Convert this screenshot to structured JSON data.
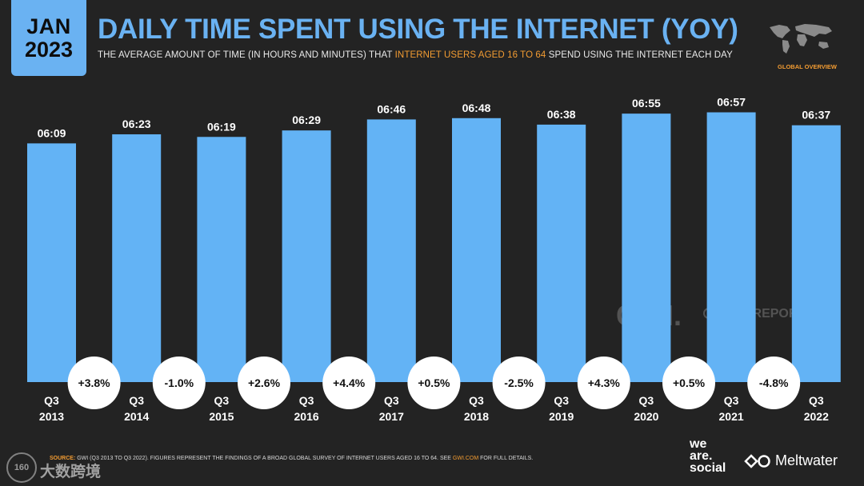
{
  "header": {
    "month": "JAN",
    "year": "2023",
    "title": "DAILY TIME SPENT USING THE INTERNET (YOY)",
    "subtitle_pre": "THE AVERAGE AMOUNT OF TIME (IN HOURS AND MINUTES) THAT ",
    "subtitle_highlight": "INTERNET USERS AGED 16 TO 64",
    "subtitle_post": " SPEND USING THE INTERNET EACH DAY",
    "section_label": "GLOBAL OVERVIEW"
  },
  "footer": {
    "source_key": "SOURCE:",
    "source_text": " GWI (Q3 2013 TO Q3 2022). FIGURES REPRESENT THE FINDINGS OF A BROAD GLOBAL SURVEY OF INTERNET USERS AGED 16 TO 64. SEE ",
    "source_link": "GWI.COM",
    "source_tail": " FOR FULL DETAILS.",
    "brand_we": [
      "we",
      "are.",
      "social"
    ],
    "brand_meltwater": "Meltwater",
    "watermark_gwi": "GWI.",
    "watermark_datareportal": "DATAREPORTAL",
    "watermark_cn": "大数跨境",
    "watermark_logo": "160"
  },
  "colors": {
    "bar": "#63b3f5",
    "accent": "#6ab2f2",
    "highlight": "#f39c32",
    "background": "#232323"
  },
  "chart_data": {
    "type": "bar",
    "categories": [
      "Q3 2013",
      "Q3 2014",
      "Q3 2015",
      "Q3 2016",
      "Q3 2017",
      "Q3 2018",
      "Q3 2019",
      "Q3 2020",
      "Q3 2021",
      "Q3 2022"
    ],
    "quarters": [
      "Q3",
      "Q3",
      "Q3",
      "Q3",
      "Q3",
      "Q3",
      "Q3",
      "Q3",
      "Q3",
      "Q3"
    ],
    "years": [
      "2013",
      "2014",
      "2015",
      "2016",
      "2017",
      "2018",
      "2019",
      "2020",
      "2021",
      "2022"
    ],
    "labels": [
      "06:09",
      "06:23",
      "06:19",
      "06:29",
      "06:46",
      "06:48",
      "06:38",
      "06:55",
      "06:57",
      "06:37"
    ],
    "values_minutes": [
      369,
      383,
      379,
      389,
      406,
      408,
      398,
      415,
      417,
      397
    ],
    "yoy_changes": [
      "+3.8%",
      "-1.0%",
      "+2.6%",
      "+4.4%",
      "+0.5%",
      "-2.5%",
      "+4.3%",
      "+0.5%",
      "-4.8%"
    ],
    "ylim_minutes": [
      0,
      430
    ],
    "grid": false
  }
}
